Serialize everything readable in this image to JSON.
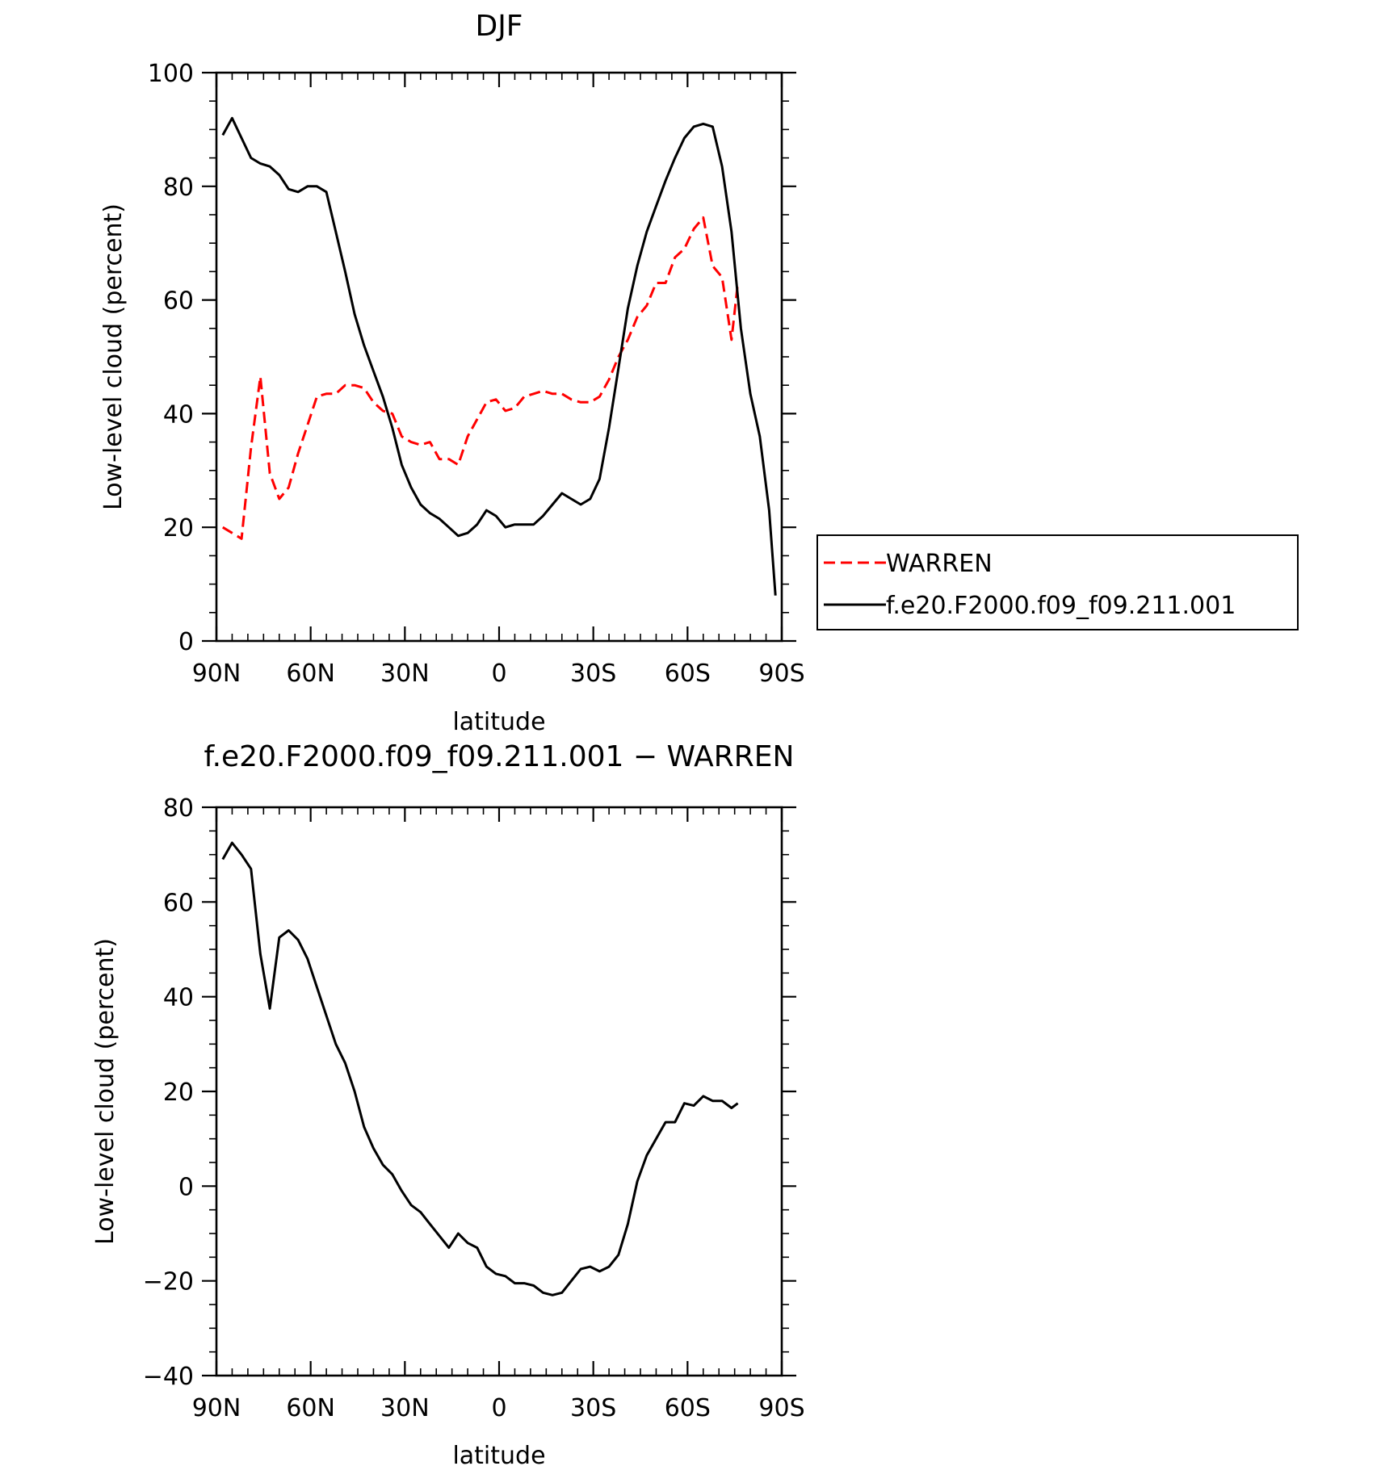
{
  "chart_data": [
    {
      "type": "line",
      "title": "DJF",
      "xlabel": "latitude",
      "ylabel": "Low-level cloud (percent)",
      "xlim": [
        90,
        -90
      ],
      "ylim": [
        0,
        100
      ],
      "xticks": [
        90,
        60,
        30,
        0,
        -30,
        -60,
        -90
      ],
      "xtick_labels": [
        "90N",
        "60N",
        "30N",
        "0",
        "30S",
        "60S",
        "90S"
      ],
      "yticks": [
        0,
        20,
        40,
        60,
        80,
        100
      ],
      "ytick_labels": [
        "0",
        "20",
        "40",
        "60",
        "80",
        "100"
      ],
      "legend_position": "right",
      "series": [
        {
          "name": "WARREN",
          "color": "#ff0000",
          "style": "dashed",
          "x": [
            88,
            85,
            82,
            79,
            76,
            73,
            70,
            67,
            64,
            61,
            58,
            55,
            52,
            49,
            46,
            43,
            40,
            37,
            34,
            31,
            28,
            25,
            22,
            19,
            16,
            13,
            10,
            7,
            4,
            1,
            -2,
            -5,
            -8,
            -11,
            -14,
            -17,
            -20,
            -23,
            -26,
            -29,
            -32,
            -35,
            -38,
            -41,
            -44,
            -47,
            -50,
            -53,
            -56,
            -59,
            -62,
            -65,
            -68,
            -71,
            -74,
            -76
          ],
          "y": [
            20,
            19,
            18,
            34,
            46.5,
            29.5,
            25,
            27,
            33,
            38,
            43,
            43.5,
            43.5,
            45,
            45,
            44.5,
            42,
            40.5,
            40,
            36,
            35,
            34.5,
            35,
            32,
            32,
            31,
            36,
            39,
            42,
            42.5,
            40.5,
            41,
            43,
            43.5,
            44,
            43.5,
            43.5,
            42.5,
            42,
            42,
            43,
            46,
            50,
            53,
            57,
            59,
            63,
            63,
            67.5,
            69,
            72.5,
            74.5,
            66,
            64,
            53,
            63
          ]
        },
        {
          "name": "f.e20.F2000.f09_f09.211.001",
          "color": "#000000",
          "style": "solid",
          "x": [
            88,
            85,
            82,
            79,
            76,
            73,
            70,
            67,
            64,
            61,
            58,
            55,
            52,
            49,
            46,
            43,
            40,
            37,
            34,
            31,
            28,
            25,
            22,
            19,
            16,
            13,
            10,
            7,
            4,
            1,
            -2,
            -5,
            -8,
            -11,
            -14,
            -17,
            -20,
            -23,
            -26,
            -29,
            -32,
            -35,
            -38,
            -41,
            -44,
            -47,
            -50,
            -53,
            -56,
            -59,
            -62,
            -65,
            -68,
            -71,
            -74,
            -77,
            -80,
            -83,
            -86,
            -88
          ],
          "y": [
            89,
            92,
            88.5,
            85,
            84,
            83.5,
            82,
            79.5,
            79,
            80,
            80,
            79,
            72,
            65,
            57.5,
            52,
            47.5,
            43,
            37.5,
            31,
            27,
            24,
            22.5,
            21.5,
            20,
            18.5,
            19,
            20.5,
            23,
            22,
            20,
            20.5,
            20.5,
            20.5,
            22,
            24,
            26,
            25,
            24,
            25,
            28.5,
            37.5,
            48,
            58.5,
            66,
            72,
            76.5,
            81,
            85,
            88.5,
            90.5,
            91,
            90.5,
            83.5,
            72,
            55,
            43.5,
            36,
            23,
            8
          ]
        }
      ]
    },
    {
      "type": "line",
      "title": "f.e20.F2000.f09_f09.211.001 − WARREN",
      "xlabel": "latitude",
      "ylabel": "Low-level cloud (percent)",
      "xlim": [
        90,
        -90
      ],
      "ylim": [
        -40,
        80
      ],
      "xticks": [
        90,
        60,
        30,
        0,
        -30,
        -60,
        -90
      ],
      "xtick_labels": [
        "90N",
        "60N",
        "30N",
        "0",
        "30S",
        "60S",
        "90S"
      ],
      "yticks": [
        -40,
        -20,
        0,
        20,
        40,
        60,
        80
      ],
      "ytick_labels": [
        "−40",
        "−20",
        "0",
        "20",
        "40",
        "60",
        "80"
      ],
      "series": [
        {
          "color": "#000000",
          "style": "solid",
          "x": [
            88,
            85,
            82,
            79,
            76,
            73,
            70,
            67,
            64,
            61,
            58,
            55,
            52,
            49,
            46,
            43,
            40,
            37,
            34,
            31,
            28,
            25,
            22,
            19,
            16,
            13,
            10,
            7,
            4,
            1,
            -2,
            -5,
            -8,
            -11,
            -14,
            -17,
            -20,
            -23,
            -26,
            -29,
            -32,
            -35,
            -38,
            -41,
            -44,
            -47,
            -50,
            -53,
            -56,
            -59,
            -62,
            -65,
            -68,
            -71,
            -74,
            -76
          ],
          "y": [
            69,
            72.5,
            70,
            67,
            49,
            37.5,
            52.5,
            54,
            52,
            48,
            42,
            36,
            30,
            26,
            20,
            12.5,
            8,
            4.5,
            2.5,
            -1,
            -4,
            -5.5,
            -8,
            -10.5,
            -13,
            -10,
            -12,
            -13,
            -17,
            -18.5,
            -19,
            -20.5,
            -20.5,
            -21,
            -22.5,
            -23,
            -22.5,
            -20,
            -17.5,
            -17,
            -18,
            -17,
            -14.5,
            -8,
            1,
            6.5,
            10,
            13.5,
            13.5,
            17.5,
            17,
            19,
            18,
            18,
            16.5,
            17.5
          ]
        }
      ]
    }
  ],
  "legend": {
    "entries": [
      "WARREN",
      "f.e20.F2000.f09_f09.211.001"
    ]
  }
}
